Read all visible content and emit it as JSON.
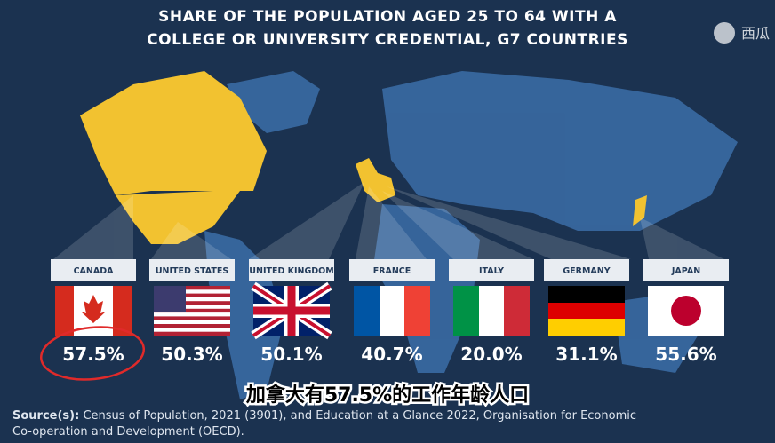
{
  "header": {
    "title_lines": [
      "SHARE OF THE POPULATION  AGED 25 TO 64 WITH A",
      "COLLEGE OR UNIVERSITY CREDENTIAL, G7 COUNTRIES"
    ]
  },
  "watermark": "西瓜",
  "countries": [
    {
      "name": "CANADA",
      "value": "57.5%"
    },
    {
      "name": "UNITED STATES",
      "value": "50.3%"
    },
    {
      "name": "UNITED KINGDOM",
      "value": "50.1%"
    },
    {
      "name": "FRANCE",
      "value": "40.7%"
    },
    {
      "name": "ITALY",
      "value": "20.0%"
    },
    {
      "name": "GERMANY",
      "value": "31.1%"
    },
    {
      "name": "JAPAN",
      "value": "55.6%"
    }
  ],
  "caption": "加拿大有57.5%的工作年龄人口",
  "source": {
    "label": "Source(s):",
    "line1": "Census of Population, 2021 (3901), and Education at a Glance 2022, Organisation for Economic",
    "line2": "Co-operation and Development (OECD)."
  }
}
